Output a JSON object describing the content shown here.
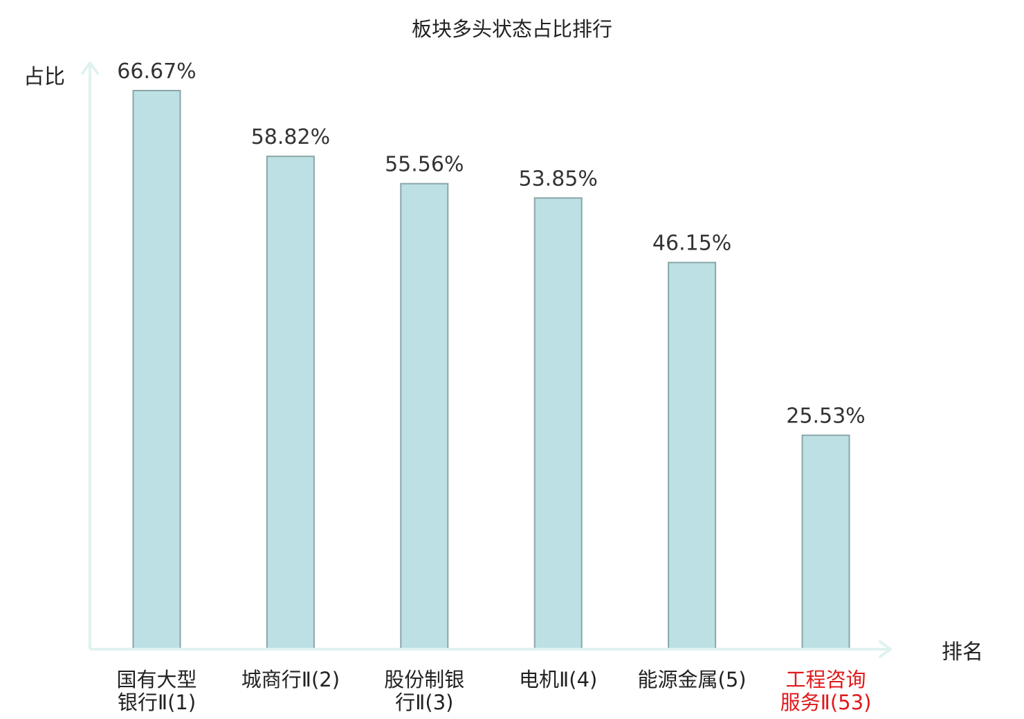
{
  "chart_data": {
    "type": "bar",
    "title": "板块多头状态占比排行",
    "ylabel": "占比",
    "xlabel": "排名",
    "categories": [
      [
        "国有大型",
        "银行Ⅱ(1)"
      ],
      [
        "城商行Ⅱ(2)"
      ],
      [
        "股份制银",
        "行Ⅱ(3)"
      ],
      [
        "电机Ⅱ(4)"
      ],
      [
        "能源金属(5)"
      ],
      [
        "工程咨询",
        "服务Ⅱ(53)"
      ]
    ],
    "values": [
      66.67,
      58.82,
      55.56,
      53.85,
      46.15,
      25.53
    ],
    "value_labels": [
      "66.67%",
      "58.82%",
      "55.56%",
      "53.85%",
      "46.15%",
      "25.53%"
    ],
    "highlight": [
      false,
      false,
      false,
      false,
      false,
      true
    ],
    "ylim": [
      0,
      70
    ],
    "grid": false,
    "colors": {
      "bar_fill": "#bce0e3",
      "bar_stroke": "#8aa6a8",
      "axis": "#dff2f0",
      "label": "#222222",
      "highlight_label": "#e0191b"
    }
  }
}
